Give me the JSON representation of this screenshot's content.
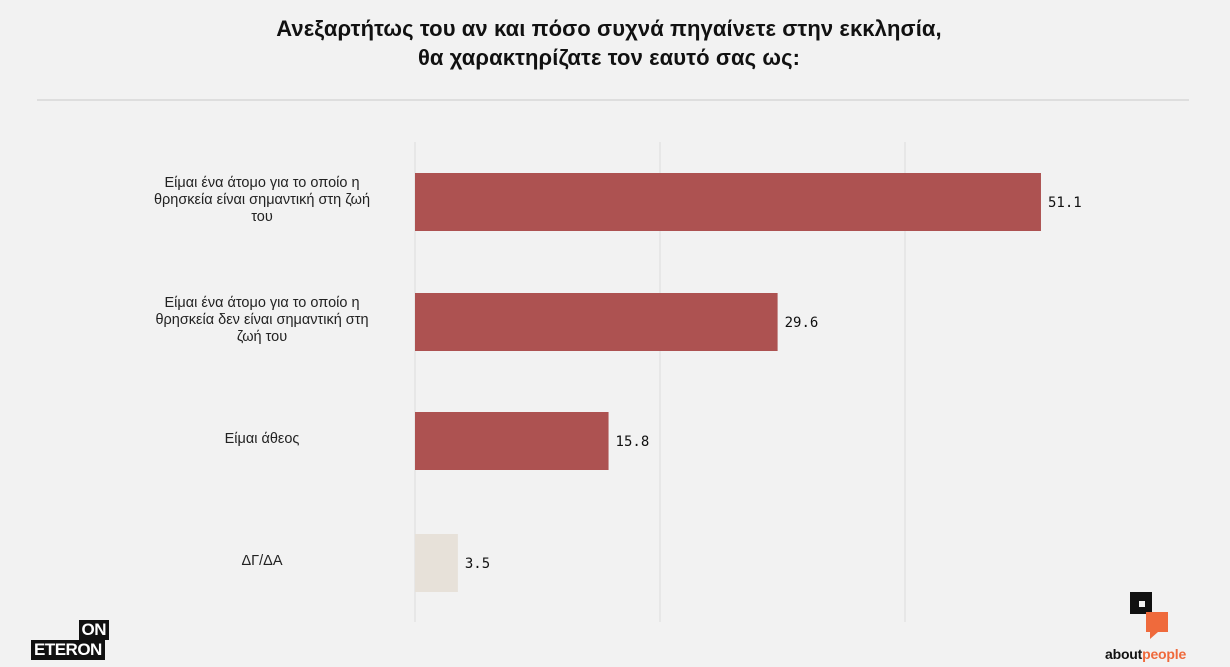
{
  "title_lines": [
    "Ανεξαρτήτως του αν και πόσο συχνά πηγαίνετε στην εκκλησία,",
    "θα χαρακτηρίζατε τον εαυτό σας ως:"
  ],
  "chart_data": {
    "type": "bar",
    "orientation": "horizontal",
    "categories": [
      "Είμαι ένα άτομο για το οποίο η θρησκεία είναι σημαντική στη ζωή του",
      "Είμαι ένα άτομο για το οποίο η θρησκεία δεν είναι σημαντική στη ζωή του",
      "Είμαι άθεος",
      "ΔΓ/ΔΑ"
    ],
    "category_label_lines": [
      [
        "Είμαι ένα άτομο για το οποίο η",
        "θρησκεία είναι σημαντική στη ζωή",
        "του"
      ],
      [
        "Είμαι ένα άτομο για το οποίο η",
        "θρησκεία δεν είναι σημαντική στη",
        "ζωή του"
      ],
      [
        "Είμαι άθεος"
      ],
      [
        "ΔΓ/ΔΑ"
      ]
    ],
    "values": [
      51.1,
      29.6,
      15.8,
      3.5
    ],
    "value_labels": [
      "51.1",
      "29.6",
      "15.8",
      "3.5"
    ],
    "bar_colors": [
      "#ad5251",
      "#ad5251",
      "#ad5251",
      "#e7e1d9"
    ],
    "xlim": [
      0,
      60
    ],
    "gridlines": [
      0,
      20,
      40
    ],
    "grid": true,
    "legend": false,
    "xlabel": "",
    "ylabel": ""
  },
  "logos": {
    "left_top": "ON",
    "left_bottom": "ETERON",
    "right_word_a": "about",
    "right_word_b": "people"
  },
  "colors": {
    "bar": "#ad5251",
    "bar_dkna": "#e7e1d9",
    "grid": "#dcdcdc",
    "accent": "#ef6a3c"
  }
}
